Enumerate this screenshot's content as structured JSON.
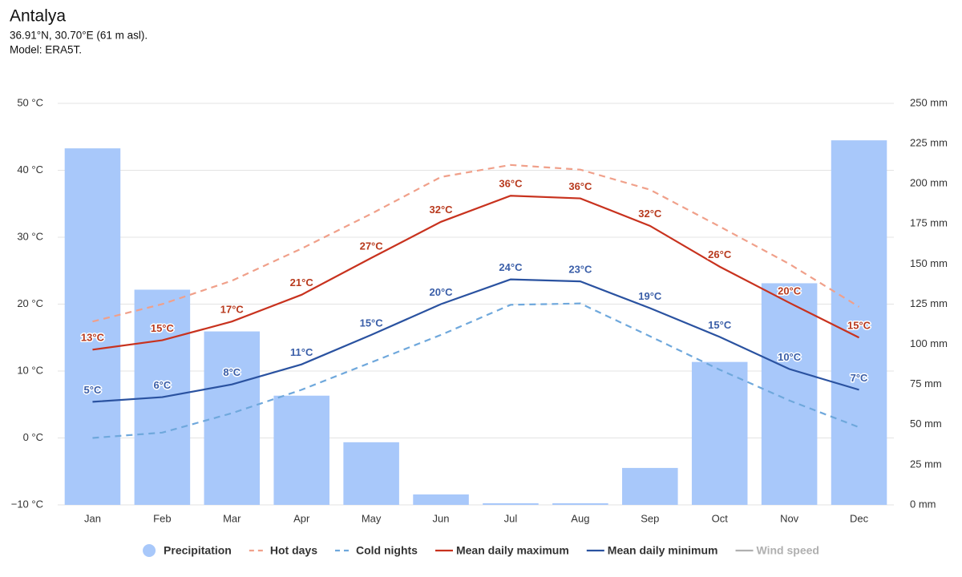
{
  "chart_data": {
    "type": "combo",
    "title": "Antalya",
    "subtitle": [
      "36.91°N, 30.70°E (61 m asl).",
      "Model: ERA5T."
    ],
    "categories": [
      "Jan",
      "Feb",
      "Mar",
      "Apr",
      "May",
      "Jun",
      "Jul",
      "Aug",
      "Sep",
      "Oct",
      "Nov",
      "Dec"
    ],
    "ylim": [
      -10,
      50
    ],
    "yticks": [
      {
        "value": -10,
        "label": "−10 °C"
      },
      {
        "value": 0,
        "label": "0 °C"
      },
      {
        "value": 10,
        "label": "10 °C"
      },
      {
        "value": 20,
        "label": "20 °C"
      },
      {
        "value": 30,
        "label": "30 °C"
      },
      {
        "value": 40,
        "label": "40 °C"
      },
      {
        "value": 50,
        "label": "50 °C"
      }
    ],
    "y2lim": [
      0,
      250
    ],
    "y2ticks": [
      {
        "value": 0,
        "label": "0 mm"
      },
      {
        "value": 25,
        "label": "25 mm"
      },
      {
        "value": 50,
        "label": "50 mm"
      },
      {
        "value": 75,
        "label": "75 mm"
      },
      {
        "value": 100,
        "label": "100 mm"
      },
      {
        "value": 125,
        "label": "125 mm"
      },
      {
        "value": 150,
        "label": "150 mm"
      },
      {
        "value": 175,
        "label": "175 mm"
      },
      {
        "value": 200,
        "label": "200 mm"
      },
      {
        "value": 225,
        "label": "225 mm"
      },
      {
        "value": 250,
        "label": "250 mm"
      }
    ],
    "grid": true,
    "legend": "bottom",
    "series": [
      {
        "name": "Precipitation",
        "type": "bar",
        "axis": "y2",
        "color": "#a8c8fa",
        "values": [
          222,
          134,
          108,
          68,
          39,
          6.5,
          1,
          1,
          23,
          89,
          138,
          227
        ]
      },
      {
        "name": "Hot days",
        "type": "line",
        "dashed": true,
        "color": "#f0a08a",
        "values": [
          17.4,
          20,
          23.5,
          28.3,
          33.5,
          39,
          40.8,
          40.1,
          37.1,
          31.6,
          26,
          19.6
        ]
      },
      {
        "name": "Cold nights",
        "type": "line",
        "dashed": true,
        "color": "#6fa8dc",
        "values": [
          0,
          0.8,
          3.7,
          7.2,
          11.3,
          15.4,
          19.9,
          20.1,
          15.2,
          10.2,
          5.6,
          1.6
        ]
      },
      {
        "name": "Mean daily maximum",
        "type": "line",
        "color": "#c8321e",
        "label_color": "#b83a1e",
        "values": [
          13.2,
          14.6,
          17.4,
          21.4,
          26.9,
          32.3,
          36.2,
          35.8,
          31.7,
          25.6,
          20.2,
          15.0
        ],
        "value_labels": [
          "13°C",
          "15°C",
          "17°C",
          "21°C",
          "27°C",
          "32°C",
          "36°C",
          "36°C",
          "32°C",
          "26°C",
          "20°C",
          "15°C"
        ]
      },
      {
        "name": "Mean daily minimum",
        "type": "line",
        "color": "#2a52a0",
        "label_color": "#3a5ea8",
        "values": [
          5.4,
          6.1,
          8.0,
          11.0,
          15.4,
          20.0,
          23.7,
          23.4,
          19.4,
          15.1,
          10.3,
          7.2
        ],
        "value_labels": [
          "5°C",
          "6°C",
          "8°C",
          "11°C",
          "15°C",
          "20°C",
          "24°C",
          "23°C",
          "19°C",
          "15°C",
          "10°C",
          "7°C"
        ]
      },
      {
        "name": "Wind speed",
        "type": "line",
        "visible": false,
        "color": "#b0b0b0"
      }
    ]
  }
}
